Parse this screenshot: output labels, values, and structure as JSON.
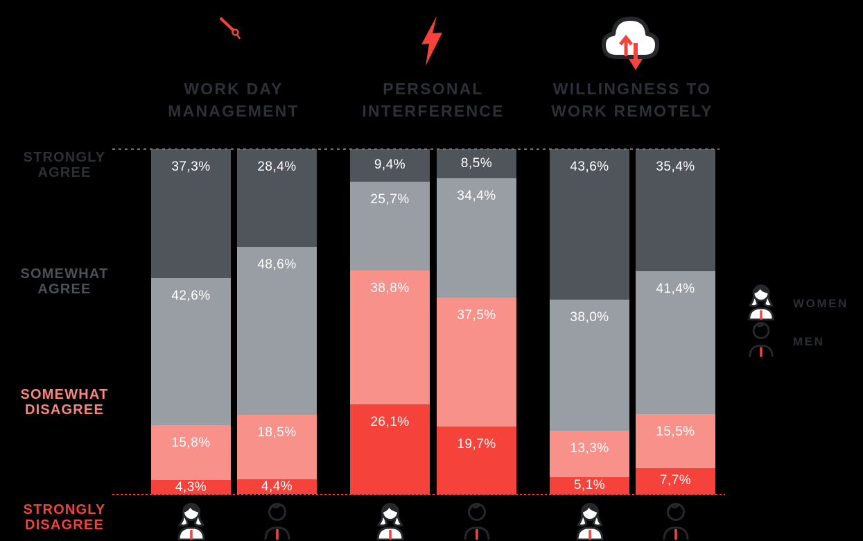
{
  "colors": {
    "background": "#000000",
    "strongly_agree": "#50545b",
    "somewhat_agree": "#999ea4",
    "somewhat_disagree": "#f9918b",
    "strongly_disagree": "#f5433c",
    "accent_red": "#f5433c",
    "icon_outline": "#26282c",
    "icon_fill": "#ffffff",
    "value_text": "#ffffff",
    "header_text": "#2d3036",
    "legend_text": "#2b2e33",
    "dashed_top": "#71757b",
    "dashed_bottom": "#f5433c"
  },
  "column_headers": [
    {
      "line1": "WORK DAY",
      "line2": "MANAGEMENT",
      "icon": "clock-hand-icon"
    },
    {
      "line1": "PERSONAL",
      "line2": "INTERFERENCE",
      "icon": "lightning-bolt-icon"
    },
    {
      "line1": "WILLINGNESS TO",
      "line2": "WORK REMOTELY",
      "icon": "cloud-transfer-icon"
    }
  ],
  "axis_labels": [
    {
      "line1": "STRONGLY",
      "line2": "AGREE",
      "color": "#2d3036"
    },
    {
      "line1": "SOMEWHAT",
      "line2": "AGREE",
      "color": "#4c5158"
    },
    {
      "line1": "SOMEWHAT",
      "line2": "DISAGREE",
      "color": "#f9867f"
    },
    {
      "line1": "STRONGLY",
      "line2": "DISAGREE",
      "color": "#f4423b"
    }
  ],
  "legend": [
    {
      "label": "WOMEN",
      "icon": "woman-icon"
    },
    {
      "label": "MEN",
      "icon": "man-icon"
    }
  ],
  "chart_data": {
    "type": "bar",
    "stacked": true,
    "orientation": "vertical",
    "unit": "%",
    "decimal_separator": ",",
    "ylim": [
      0,
      100
    ],
    "grid": false,
    "legend_position": "right",
    "categories": [
      "WORK DAY MANAGEMENT",
      "PERSONAL INTERFERENCE",
      "WILLINGNESS TO WORK REMOTELY"
    ],
    "stack_levels": [
      "STRONGLY AGREE",
      "SOMEWHAT AGREE",
      "SOMEWHAT DISAGREE",
      "STRONGLY DISAGREE"
    ],
    "series": [
      {
        "name": "WOMEN",
        "values": [
          [
            37.3,
            42.6,
            15.8,
            4.3
          ],
          [
            9.4,
            25.7,
            38.8,
            26.1
          ],
          [
            43.6,
            38.0,
            13.3,
            5.1
          ]
        ],
        "labels": [
          [
            "37,3%",
            "42,6%",
            "15,8%",
            "4,3%"
          ],
          [
            "9,4%",
            "25,7%",
            "38,8%",
            "26,1%"
          ],
          [
            "43,6%",
            "38,0%",
            "13,3%",
            "5,1%"
          ]
        ]
      },
      {
        "name": "MEN",
        "values": [
          [
            28.4,
            48.6,
            18.5,
            4.4
          ],
          [
            8.5,
            34.4,
            37.5,
            19.7
          ],
          [
            35.4,
            41.4,
            15.5,
            7.7
          ]
        ],
        "labels": [
          [
            "28,4%",
            "48,6%",
            "18,5%",
            "4,4%"
          ],
          [
            "8,5%",
            "34,4%",
            "37,5%",
            "19,7%"
          ],
          [
            "35,4%",
            "41,4%",
            "15,5%",
            "7,7%"
          ]
        ]
      }
    ]
  }
}
